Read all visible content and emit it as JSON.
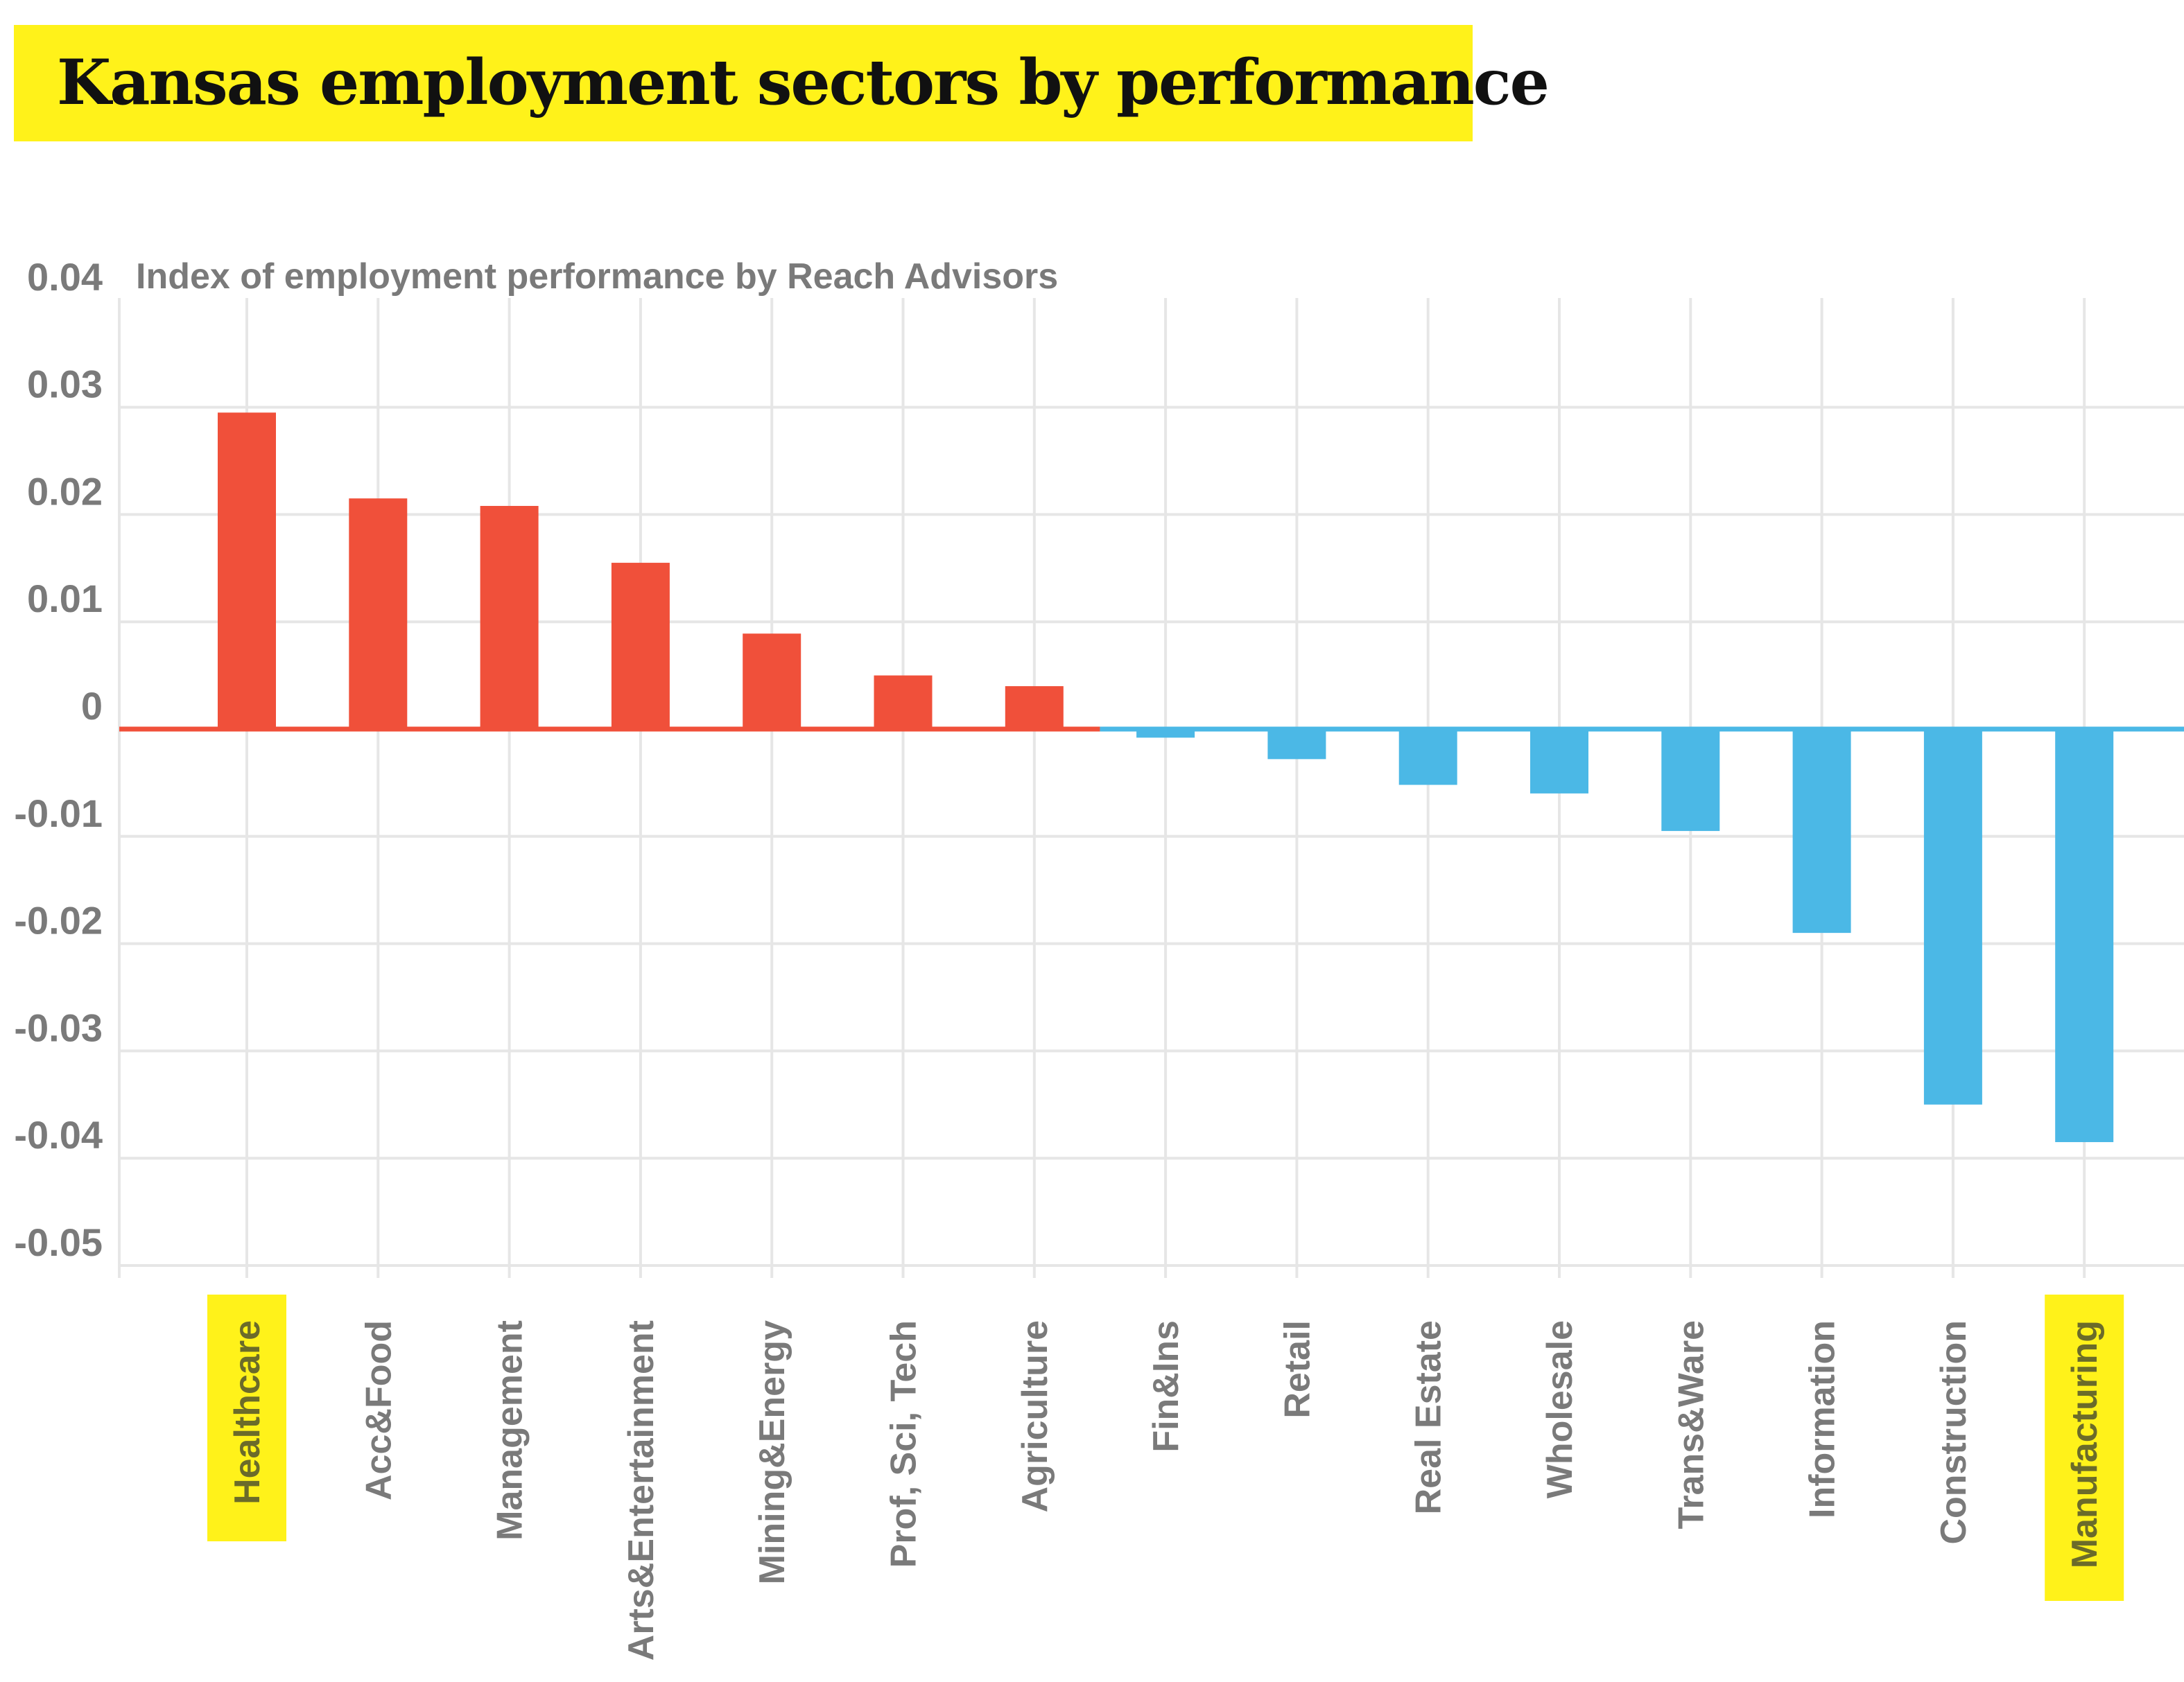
{
  "title": "Kansas employment sectors by performance",
  "colors": {
    "highlight": "#fff21a",
    "positive": "#f0503a",
    "negative": "#4bb8e6",
    "grid": "#e6e6e6",
    "text": "#7a7a7a"
  },
  "chart_data": {
    "type": "bar",
    "title": "Kansas employment sectors by performance",
    "subtitle": "Index of employment performance by Reach Advisors",
    "categories": [
      "Healthcare",
      "Acc&Food",
      "Management",
      "Arts&Entertainment",
      "Mining&Energy",
      "Prof, Sci, Tech",
      "Agriculture",
      "Fin&Ins",
      "Retail",
      "Real Estate",
      "Wholesale",
      "Trans&Ware",
      "Information",
      "Construction",
      "Manufacturing"
    ],
    "values": [
      0.0295,
      0.0215,
      0.0208,
      0.0155,
      0.0089,
      0.005,
      0.004,
      -0.0008,
      -0.0028,
      -0.0052,
      -0.006,
      -0.0095,
      -0.019,
      -0.035,
      -0.0385
    ],
    "highlighted": [
      "Healthcare",
      "Manufacturing"
    ],
    "ylim": [
      -0.05,
      0.04
    ],
    "yticks": [
      0.04,
      0.03,
      0.02,
      0.01,
      0,
      -0.01,
      -0.02,
      -0.03,
      -0.04,
      -0.05
    ],
    "ytick_labels": [
      "0.04",
      "0.03",
      "0.02",
      "0.01",
      "0",
      "-0.01",
      "-0.02",
      "-0.03",
      "-0.04",
      "-0.05"
    ],
    "xlabel": "",
    "ylabel": "",
    "grid": true
  }
}
